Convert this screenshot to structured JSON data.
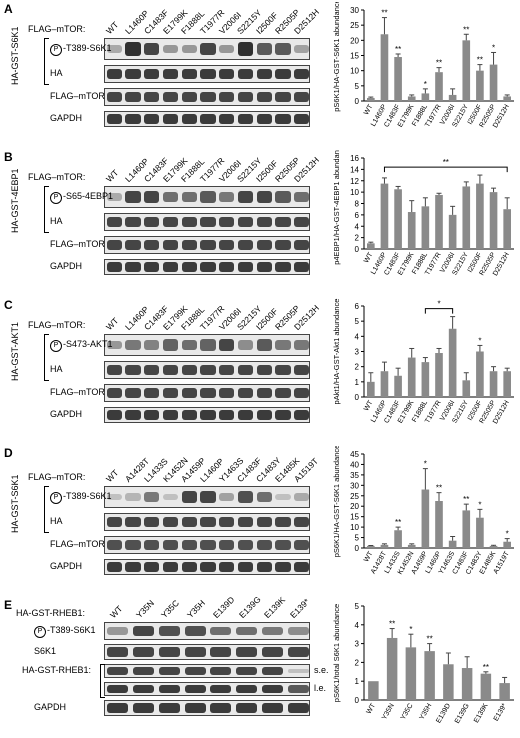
{
  "panels": [
    {
      "letter": "A",
      "side_label": "HA-GST-S6K1",
      "header": "FLAG–mTOR:",
      "lanes": [
        "WT",
        "L1460P",
        "C1483F",
        "E1799K",
        "F1888L",
        "T1977R",
        "V2006I",
        "S2215Y",
        "I2500F",
        "R2505P",
        "D2512H"
      ],
      "rows": [
        {
          "label": "-T389-S6K1",
          "phospho": true,
          "intensity": [
            0.3,
            0.9,
            0.8,
            0.4,
            0.4,
            0.8,
            0.4,
            0.9,
            0.7,
            0.7,
            0.35
          ]
        },
        {
          "label": "HA",
          "phospho": false,
          "intensity": [
            0.85,
            0.85,
            0.85,
            0.85,
            0.85,
            0.85,
            0.85,
            0.85,
            0.85,
            0.85,
            0.85
          ]
        },
        {
          "label": "FLAG–mTOR",
          "phospho": false,
          "intensity": [
            0.8,
            0.8,
            0.8,
            0.8,
            0.8,
            0.8,
            0.8,
            0.8,
            0.8,
            0.8,
            0.8
          ]
        },
        {
          "label": "GAPDH",
          "phospho": false,
          "intensity": [
            0.85,
            0.85,
            0.85,
            0.85,
            0.85,
            0.85,
            0.85,
            0.85,
            0.85,
            0.85,
            0.85
          ]
        }
      ]
    },
    {
      "letter": "B",
      "side_label": "HA-GST-4EBP1",
      "header": "FLAG–mTOR:",
      "lanes": [
        "WT",
        "L1460P",
        "C1483F",
        "E1799K",
        "F1888L",
        "T1977R",
        "V2006I",
        "S2215Y",
        "I2500F",
        "R2505P",
        "D2512H"
      ],
      "rows": [
        {
          "label": "-S65-4EBP1",
          "phospho": true,
          "intensity": [
            0.3,
            0.8,
            0.8,
            0.6,
            0.6,
            0.7,
            0.55,
            0.8,
            0.8,
            0.7,
            0.6
          ]
        },
        {
          "label": "HA",
          "phospho": false,
          "intensity": [
            0.8,
            0.8,
            0.8,
            0.8,
            0.8,
            0.8,
            0.8,
            0.8,
            0.8,
            0.8,
            0.8
          ]
        },
        {
          "label": "FLAG–mTOR",
          "phospho": false,
          "intensity": [
            0.8,
            0.8,
            0.8,
            0.8,
            0.8,
            0.8,
            0.8,
            0.8,
            0.8,
            0.8,
            0.8
          ]
        },
        {
          "label": "GAPDH",
          "phospho": false,
          "intensity": [
            0.85,
            0.85,
            0.85,
            0.85,
            0.85,
            0.85,
            0.85,
            0.85,
            0.85,
            0.85,
            0.85
          ]
        }
      ]
    },
    {
      "letter": "C",
      "side_label": "HA-GST-AKT1",
      "header": "FLAG–mTOR:",
      "lanes": [
        "WT",
        "L1460P",
        "C1483F",
        "E1799K",
        "F1888L",
        "T1977R",
        "V2006I",
        "S2215Y",
        "I2500F",
        "R2505P",
        "D2512H"
      ],
      "rows": [
        {
          "label": "-S473-AKT1",
          "phospho": true,
          "intensity": [
            0.4,
            0.55,
            0.5,
            0.65,
            0.6,
            0.65,
            0.8,
            0.45,
            0.7,
            0.55,
            0.55
          ]
        },
        {
          "label": "HA",
          "phospho": false,
          "intensity": [
            0.8,
            0.8,
            0.8,
            0.8,
            0.8,
            0.8,
            0.8,
            0.8,
            0.8,
            0.8,
            0.8
          ]
        },
        {
          "label": "FLAG–mTOR",
          "phospho": false,
          "intensity": [
            0.8,
            0.8,
            0.8,
            0.8,
            0.8,
            0.8,
            0.8,
            0.8,
            0.8,
            0.8,
            0.8
          ]
        },
        {
          "label": "GAPDH",
          "phospho": false,
          "intensity": [
            0.85,
            0.85,
            0.85,
            0.85,
            0.85,
            0.85,
            0.85,
            0.85,
            0.85,
            0.85,
            0.85
          ]
        }
      ]
    },
    {
      "letter": "D",
      "side_label": "HA-GST-S6K1",
      "header": "FLAG–mTOR:",
      "lanes": [
        "WT",
        "A1428T",
        "L1433S",
        "K1452N",
        "A1459P",
        "L1460P",
        "Y1463S",
        "C1483F",
        "C1483Y",
        "E1485K",
        "A1519T"
      ],
      "rows": [
        {
          "label": "-T389-S6K1",
          "phospho": true,
          "intensity": [
            0.2,
            0.25,
            0.55,
            0.2,
            0.8,
            0.8,
            0.35,
            0.75,
            0.6,
            0.2,
            0.3
          ]
        },
        {
          "label": "HA",
          "phospho": false,
          "intensity": [
            0.8,
            0.8,
            0.8,
            0.8,
            0.8,
            0.8,
            0.8,
            0.8,
            0.8,
            0.8,
            0.8
          ]
        },
        {
          "label": "FLAG–mTOR",
          "phospho": false,
          "intensity": [
            0.75,
            0.75,
            0.75,
            0.75,
            0.75,
            0.75,
            0.75,
            0.75,
            0.75,
            0.75,
            0.75
          ]
        },
        {
          "label": "GAPDH",
          "phospho": false,
          "intensity": [
            0.85,
            0.85,
            0.85,
            0.85,
            0.85,
            0.85,
            0.85,
            0.85,
            0.85,
            0.85,
            0.85
          ]
        }
      ]
    },
    {
      "letter": "E",
      "side_label": "",
      "header": "HA-GST-RHEB1:",
      "lanes": [
        "WT",
        "Y35N",
        "Y35C",
        "Y35H",
        "E139D",
        "E139G",
        "E139K",
        "E139*"
      ],
      "rows": [
        {
          "label": "-T389-S6K1",
          "phospho": true,
          "intensity": [
            0.4,
            0.8,
            0.75,
            0.75,
            0.6,
            0.6,
            0.55,
            0.45
          ]
        },
        {
          "label": "S6K1",
          "phospho": false,
          "intensity": [
            0.8,
            0.8,
            0.8,
            0.8,
            0.8,
            0.8,
            0.8,
            0.8
          ]
        },
        {
          "label": "HA-GST-RHEB1:",
          "phospho": false,
          "intensity": [
            0.8,
            0.8,
            0.8,
            0.8,
            0.8,
            0.8,
            0.8,
            0.2
          ],
          "sub": "s.e."
        },
        {
          "label": "",
          "phospho": false,
          "intensity": [
            0.85,
            0.85,
            0.85,
            0.85,
            0.85,
            0.85,
            0.85,
            0.7
          ],
          "sub": "l.e."
        },
        {
          "label": "GAPDH",
          "phospho": false,
          "intensity": [
            0.85,
            0.85,
            0.85,
            0.85,
            0.85,
            0.85,
            0.85,
            0.85
          ]
        }
      ]
    }
  ],
  "phospho_symbol": "P",
  "chart_data": [
    {
      "type": "bar",
      "ylabel": "pS6K1/HA-GST-S6K1 abundance",
      "categories": [
        "WT",
        "L1460P",
        "C1483F",
        "E1799K",
        "F1888L",
        "T1977R",
        "V2006I",
        "S2215Y",
        "I2500F",
        "R2505P",
        "D2512H"
      ],
      "values": [
        1,
        22,
        14.5,
        1.5,
        2.5,
        9.5,
        2,
        20,
        10,
        12,
        1.5
      ],
      "errors": [
        0.3,
        5.5,
        1,
        0.5,
        1.5,
        1.5,
        2,
        2,
        2,
        4,
        0.5
      ],
      "sig": [
        "",
        "**",
        "**",
        "",
        "*",
        "**",
        "",
        "**",
        "**",
        "*",
        ""
      ],
      "ylim": [
        0,
        30
      ],
      "yticks": [
        0,
        5,
        10,
        15,
        20,
        25,
        30
      ]
    },
    {
      "type": "bar",
      "ylabel": "p4EBP1/HA-GST-4EBP1 abundance",
      "categories": [
        "WT",
        "L1460P",
        "C1483F",
        "E1799K",
        "F1888L",
        "T1977R",
        "V2006I",
        "S2215Y",
        "I2500F",
        "R2505P",
        "D2512H"
      ],
      "values": [
        1,
        11.5,
        10.5,
        6.5,
        7.5,
        9.5,
        6,
        11,
        11.5,
        10,
        7
      ],
      "errors": [
        0.2,
        1,
        0.5,
        2,
        1.5,
        0.3,
        1.5,
        0.8,
        1.5,
        0.7,
        2
      ],
      "sig": [
        "",
        "",
        "",
        "",
        "",
        "",
        "",
        "",
        "",
        "",
        ""
      ],
      "bracket": {
        "from": 1,
        "to": 10,
        "label": "**"
      },
      "ylim": [
        0,
        16
      ],
      "yticks": [
        0,
        2,
        4,
        6,
        8,
        10,
        12,
        14,
        16
      ]
    },
    {
      "type": "bar",
      "ylabel": "pAkt1/HA-GST-Akt1 abundance",
      "categories": [
        "WT",
        "L1460P",
        "C1483F",
        "E1799K",
        "F1888L",
        "T1977R",
        "V2006I",
        "S2215Y",
        "I2500F",
        "R2505P",
        "D2512H"
      ],
      "values": [
        1,
        1.7,
        1.4,
        2.6,
        2.3,
        2.9,
        4.5,
        1.1,
        3,
        1.7,
        1.7
      ],
      "errors": [
        0.6,
        0.6,
        0.5,
        0.6,
        0.3,
        0.3,
        0.8,
        0.5,
        0.4,
        0.3,
        0.2
      ],
      "sig": [
        "",
        "",
        "",
        "",
        "",
        "",
        "",
        "",
        "*",
        "",
        ""
      ],
      "bracket": {
        "from": 4,
        "to": 6,
        "label": "*"
      },
      "ylim": [
        0,
        6
      ],
      "yticks": [
        0,
        1,
        2,
        3,
        4,
        5,
        6
      ]
    },
    {
      "type": "bar",
      "ylabel": "pS6K1/HA-GST-S6K1 abundance",
      "categories": [
        "WT",
        "A1428T",
        "L1433S",
        "K1452N",
        "A1459P",
        "L1460P",
        "Y1463S",
        "C1483F",
        "C1483Y",
        "E1485K",
        "A1519T"
      ],
      "values": [
        1,
        1.5,
        8.5,
        1.5,
        28,
        22.5,
        3.5,
        18,
        14.5,
        1,
        3
      ],
      "errors": [
        0.2,
        0.5,
        1.5,
        0.5,
        10,
        4,
        2,
        3,
        4,
        0.3,
        1.5
      ],
      "sig": [
        "",
        "",
        "**",
        "",
        "*",
        "**",
        "",
        "**",
        "*",
        "",
        "*"
      ],
      "ylim": [
        0,
        45
      ],
      "yticks": [
        0,
        5,
        10,
        15,
        20,
        25,
        30,
        35,
        40,
        45
      ]
    },
    {
      "type": "bar",
      "ylabel": "pS6K1/total S6K1 abundance",
      "categories": [
        "WT",
        "Y35N",
        "Y35C",
        "Y35H",
        "E139D",
        "E139G",
        "E139K",
        "E139*"
      ],
      "values": [
        1,
        3.3,
        2.8,
        2.6,
        1.9,
        1.7,
        1.4,
        0.9
      ],
      "errors": [
        0,
        0.5,
        0.7,
        0.4,
        0.6,
        0.6,
        0.1,
        0.3
      ],
      "sig": [
        "",
        "**",
        "*",
        "**",
        "",
        "",
        "**",
        ""
      ],
      "ylim": [
        0,
        5
      ],
      "yticks": [
        0,
        1,
        2,
        3,
        4,
        5
      ]
    }
  ]
}
